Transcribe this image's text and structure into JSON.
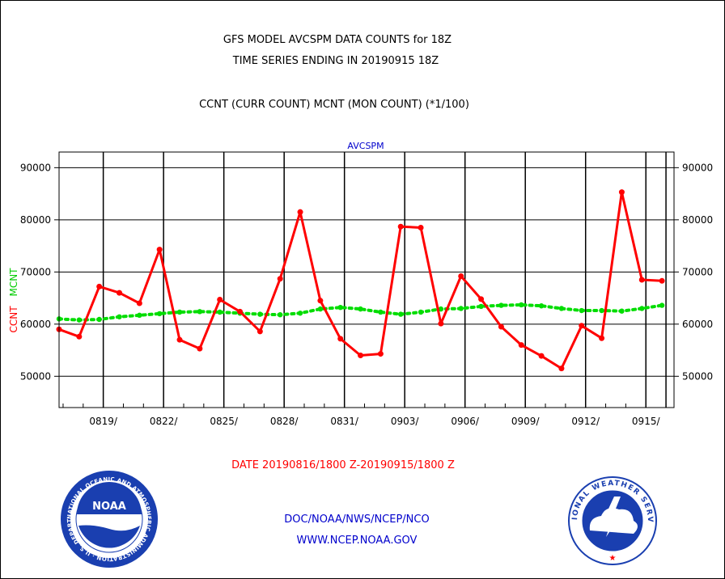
{
  "chart_data": {
    "type": "line",
    "title_lines": [
      "GFS MODEL AVCSPM DATA COUNTS for 18Z",
      "TIME SERIES ENDING IN 20190915 18Z"
    ],
    "subtitle": "CCNT (CURR COUNT) MCNT (MON COUNT) (*1/100)",
    "panel_label": "AVCSPM",
    "ylabel_parts": [
      {
        "text": "CCNT",
        "color": "#ff0000"
      },
      {
        "text": "MCNT",
        "color": "#00cc00"
      }
    ],
    "ylim": [
      44000,
      93000
    ],
    "yticks": [
      50000,
      60000,
      70000,
      80000,
      90000
    ],
    "ytick_labels": [
      "50000",
      "60000",
      "70000",
      "80000",
      "90000"
    ],
    "xlim": [
      0,
      30.6
    ],
    "x_major": [
      2.2,
      5.2,
      8.2,
      11.2,
      14.2,
      17.2,
      20.2,
      23.2,
      26.2,
      29.2,
      30.2
    ],
    "xtick_labels": [
      {
        "x": 2.2,
        "label": "0819/"
      },
      {
        "x": 5.2,
        "label": "0822/"
      },
      {
        "x": 8.2,
        "label": "0825/"
      },
      {
        "x": 11.2,
        "label": "0828/"
      },
      {
        "x": 14.2,
        "label": "0831/"
      },
      {
        "x": 17.2,
        "label": "0903/"
      },
      {
        "x": 20.2,
        "label": "0906/"
      },
      {
        "x": 23.2,
        "label": "0909/"
      },
      {
        "x": 26.2,
        "label": "0912/"
      },
      {
        "x": 29.2,
        "label": "0915/"
      }
    ],
    "grid": true,
    "x": [
      0,
      1,
      2,
      3,
      4,
      5,
      6,
      7,
      8,
      9,
      10,
      11,
      12,
      13,
      14,
      15,
      16,
      17,
      18,
      19,
      20,
      21,
      22,
      23,
      24,
      25,
      26,
      27,
      28,
      29,
      30
    ],
    "series": [
      {
        "name": "CCNT",
        "color": "#ff0000",
        "style": "solid",
        "values": [
          59000,
          57600,
          67200,
          66000,
          64000,
          74300,
          57000,
          55300,
          64700,
          62400,
          58600,
          68700,
          81500,
          64500,
          57200,
          54000,
          54300,
          78700,
          78500,
          60100,
          69200,
          64800,
          59500,
          56000,
          53900,
          51500,
          59700,
          57300,
          85300,
          68500,
          68300
        ]
      },
      {
        "name": "MCNT",
        "color": "#00dd00",
        "style": "dotted",
        "values": [
          61000,
          60800,
          60900,
          61400,
          61700,
          62000,
          62300,
          62400,
          62300,
          62100,
          61900,
          61800,
          62100,
          62900,
          63200,
          62900,
          62300,
          61900,
          62300,
          62900,
          63000,
          63400,
          63600,
          63700,
          63500,
          63000,
          62600,
          62600,
          62500,
          63000,
          63600
        ]
      }
    ],
    "date_range": "DATE 20190816/1800 Z-20190915/1800 Z"
  },
  "footer": {
    "line1": "DOC/NOAA/NWS/NCEP/NCO",
    "line2": "WWW.NCEP.NOAA.GOV"
  },
  "logos": {
    "left": {
      "center_text": "NOAA",
      "ring_text": "NATIONAL OCEANIC AND ATMOSPHERIC ADMINISTRATION · U.S. DEPARTMENT OF COMMERCE ·"
    },
    "right": {
      "ring_text": "NATIONAL WEATHER SERVICE"
    }
  },
  "colors": {
    "title": "#000000",
    "panel_label": "#0000cc",
    "date_range": "#ff0000",
    "footer": "#0000cc",
    "noaa_blue": "#1a3fb0",
    "nws_blue": "#1a3fb0"
  }
}
